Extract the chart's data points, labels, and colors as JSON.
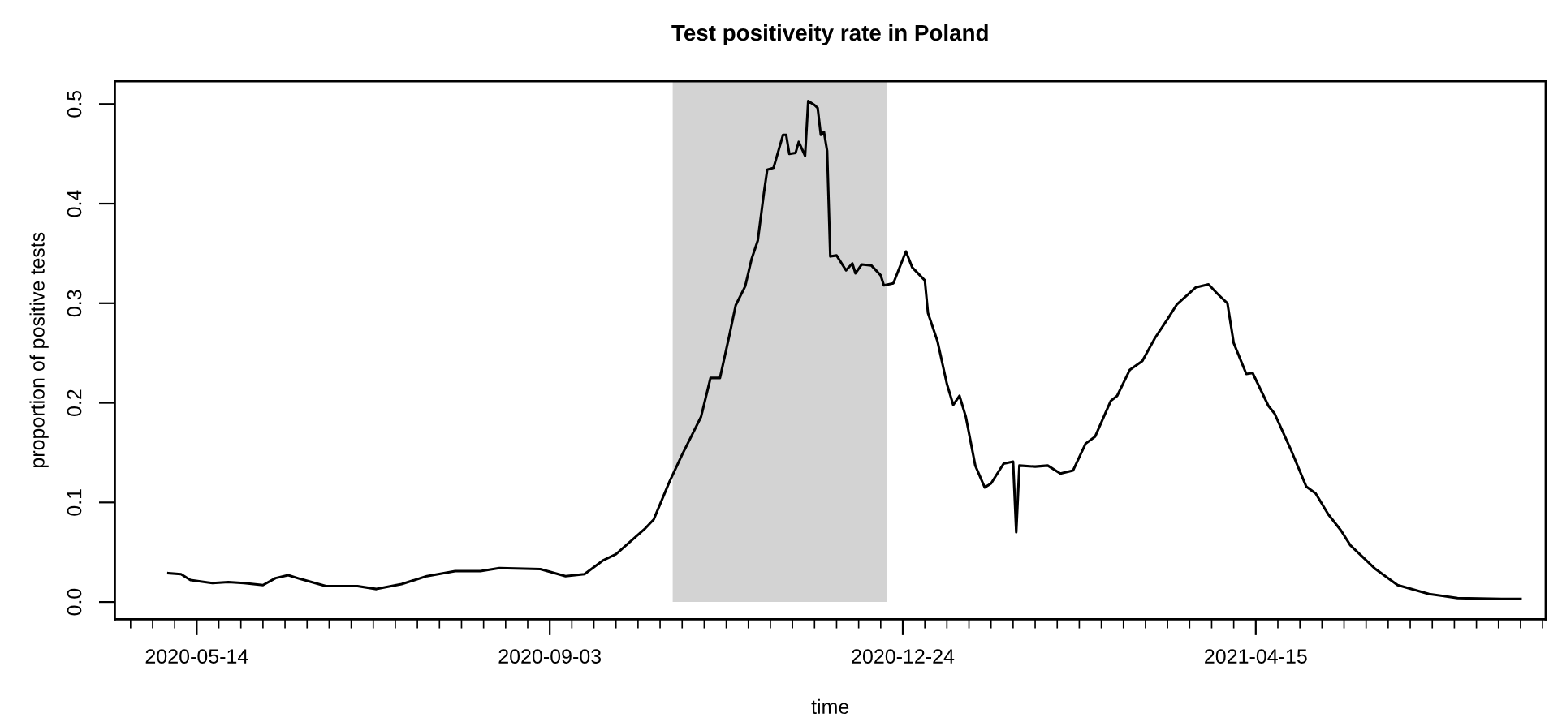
{
  "chart_data": {
    "type": "line",
    "title": "Test positiveity rate in Poland",
    "xlabel": "time",
    "ylabel": "proportion of positive tests",
    "x": [
      "2020-05-05",
      "2020-05-09",
      "2020-05-12",
      "2020-05-19",
      "2020-05-24",
      "2020-05-29",
      "2020-06-04",
      "2020-06-08",
      "2020-06-12",
      "2020-06-16",
      "2020-06-24",
      "2020-07-04",
      "2020-07-10",
      "2020-07-18",
      "2020-07-26",
      "2020-08-04",
      "2020-08-12",
      "2020-08-18",
      "2020-08-31",
      "2020-09-08",
      "2020-09-14",
      "2020-09-20",
      "2020-09-24",
      "2020-10-03",
      "2020-10-06",
      "2020-10-11",
      "2020-10-15",
      "2020-10-18",
      "2020-10-21",
      "2020-10-24",
      "2020-10-27",
      "2020-10-30",
      "2020-11-01",
      "2020-11-04",
      "2020-11-06",
      "2020-11-08",
      "2020-11-10",
      "2020-11-11",
      "2020-11-13",
      "2020-11-16",
      "2020-11-17",
      "2020-11-18",
      "2020-11-20",
      "2020-11-21",
      "2020-11-23",
      "2020-11-24",
      "2020-11-26",
      "2020-11-27",
      "2020-11-28",
      "2020-11-29",
      "2020-11-30",
      "2020-12-01",
      "2020-12-03",
      "2020-12-06",
      "2020-12-08",
      "2020-12-09",
      "2020-12-11",
      "2020-12-14",
      "2020-12-17",
      "2020-12-18",
      "2020-12-21",
      "2020-12-25",
      "2020-12-27",
      "2020-12-31",
      "2021-01-01",
      "2021-01-04",
      "2021-01-07",
      "2021-01-09",
      "2021-01-11",
      "2021-01-13",
      "2021-01-16",
      "2021-01-19",
      "2021-01-21",
      "2021-01-25",
      "2021-01-28",
      "2021-01-29",
      "2021-01-30",
      "2021-02-04",
      "2021-02-08",
      "2021-02-12",
      "2021-02-16",
      "2021-02-20",
      "2021-02-23",
      "2021-02-28",
      "2021-03-02",
      "2021-03-06",
      "2021-03-10",
      "2021-03-14",
      "2021-03-18",
      "2021-03-21",
      "2021-03-27",
      "2021-03-31",
      "2021-04-03",
      "2021-04-06",
      "2021-04-08",
      "2021-04-12",
      "2021-04-14",
      "2021-04-19",
      "2021-04-21",
      "2021-04-26",
      "2021-05-01",
      "2021-05-04",
      "2021-05-08",
      "2021-05-12",
      "2021-05-15",
      "2021-05-23",
      "2021-05-30",
      "2021-06-09",
      "2021-06-18",
      "2021-07-02",
      "2021-07-08"
    ],
    "series": [
      {
        "color": "#000000",
        "values": [
          0.029,
          0.028,
          0.022,
          0.019,
          0.02,
          0.019,
          0.017,
          0.024,
          0.027,
          0.023,
          0.016,
          0.016,
          0.013,
          0.018,
          0.026,
          0.031,
          0.031,
          0.034,
          0.033,
          0.026,
          0.028,
          0.042,
          0.048,
          0.073,
          0.083,
          0.121,
          0.148,
          0.167,
          0.186,
          0.225,
          0.225,
          0.268,
          0.298,
          0.317,
          0.344,
          0.363,
          0.412,
          0.434,
          0.436,
          0.469,
          0.469,
          0.45,
          0.451,
          0.462,
          0.448,
          0.503,
          0.499,
          0.496,
          0.469,
          0.472,
          0.453,
          0.347,
          0.348,
          0.333,
          0.34,
          0.33,
          0.339,
          0.338,
          0.328,
          0.318,
          0.32,
          0.352,
          0.336,
          0.323,
          0.29,
          0.262,
          0.219,
          0.198,
          0.207,
          0.186,
          0.137,
          0.115,
          0.119,
          0.139,
          0.141,
          0.07,
          0.137,
          0.136,
          0.137,
          0.129,
          0.132,
          0.159,
          0.166,
          0.202,
          0.207,
          0.233,
          0.242,
          0.265,
          0.284,
          0.299,
          0.316,
          0.319,
          0.309,
          0.3,
          0.26,
          0.229,
          0.23,
          0.197,
          0.189,
          0.154,
          0.116,
          0.109,
          0.088,
          0.072,
          0.057,
          0.033,
          0.017,
          0.008,
          0.004,
          0.003,
          0.003
        ]
      }
    ],
    "bands": [
      {
        "axis": "x",
        "from": "2020-10-12",
        "to": "2020-12-19",
        "color": "#d3d3d3"
      }
    ],
    "xlim": [
      "2020-04-18",
      "2021-07-16"
    ],
    "xticks": [
      {
        "value": "2020-04-23",
        "label": null
      },
      {
        "value": "2020-04-30",
        "label": null
      },
      {
        "value": "2020-05-07",
        "label": null
      },
      {
        "value": "2020-05-14",
        "label": "2020-05-14"
      },
      {
        "value": "2020-05-21",
        "label": null
      },
      {
        "value": "2020-05-28",
        "label": null
      },
      {
        "value": "2020-06-04",
        "label": null
      },
      {
        "value": "2020-06-11",
        "label": null
      },
      {
        "value": "2020-06-18",
        "label": null
      },
      {
        "value": "2020-06-25",
        "label": null
      },
      {
        "value": "2020-07-02",
        "label": null
      },
      {
        "value": "2020-07-09",
        "label": null
      },
      {
        "value": "2020-07-16",
        "label": null
      },
      {
        "value": "2020-07-23",
        "label": null
      },
      {
        "value": "2020-07-30",
        "label": null
      },
      {
        "value": "2020-08-06",
        "label": null
      },
      {
        "value": "2020-08-13",
        "label": null
      },
      {
        "value": "2020-08-20",
        "label": null
      },
      {
        "value": "2020-08-27",
        "label": null
      },
      {
        "value": "2020-09-03",
        "label": "2020-09-03"
      },
      {
        "value": "2020-09-10",
        "label": null
      },
      {
        "value": "2020-09-17",
        "label": null
      },
      {
        "value": "2020-09-24",
        "label": null
      },
      {
        "value": "2020-10-01",
        "label": null
      },
      {
        "value": "2020-10-08",
        "label": null
      },
      {
        "value": "2020-10-15",
        "label": null
      },
      {
        "value": "2020-10-22",
        "label": null
      },
      {
        "value": "2020-10-29",
        "label": null
      },
      {
        "value": "2020-11-05",
        "label": null
      },
      {
        "value": "2020-11-12",
        "label": null
      },
      {
        "value": "2020-11-19",
        "label": null
      },
      {
        "value": "2020-11-26",
        "label": null
      },
      {
        "value": "2020-12-03",
        "label": null
      },
      {
        "value": "2020-12-10",
        "label": null
      },
      {
        "value": "2020-12-17",
        "label": null
      },
      {
        "value": "2020-12-24",
        "label": "2020-12-24"
      },
      {
        "value": "2020-12-31",
        "label": null
      },
      {
        "value": "2021-01-07",
        "label": null
      },
      {
        "value": "2021-01-14",
        "label": null
      },
      {
        "value": "2021-01-21",
        "label": null
      },
      {
        "value": "2021-01-28",
        "label": null
      },
      {
        "value": "2021-02-04",
        "label": null
      },
      {
        "value": "2021-02-11",
        "label": null
      },
      {
        "value": "2021-02-18",
        "label": null
      },
      {
        "value": "2021-02-25",
        "label": null
      },
      {
        "value": "2021-03-04",
        "label": null
      },
      {
        "value": "2021-03-11",
        "label": null
      },
      {
        "value": "2021-03-18",
        "label": null
      },
      {
        "value": "2021-03-25",
        "label": null
      },
      {
        "value": "2021-04-01",
        "label": null
      },
      {
        "value": "2021-04-08",
        "label": null
      },
      {
        "value": "2021-04-15",
        "label": "2021-04-15"
      },
      {
        "value": "2021-04-22",
        "label": null
      },
      {
        "value": "2021-04-29",
        "label": null
      },
      {
        "value": "2021-05-06",
        "label": null
      },
      {
        "value": "2021-05-13",
        "label": null
      },
      {
        "value": "2021-05-20",
        "label": null
      },
      {
        "value": "2021-05-27",
        "label": null
      },
      {
        "value": "2021-06-03",
        "label": null
      },
      {
        "value": "2021-06-10",
        "label": null
      },
      {
        "value": "2021-06-17",
        "label": null
      },
      {
        "value": "2021-06-24",
        "label": null
      },
      {
        "value": "2021-07-01",
        "label": null
      },
      {
        "value": "2021-07-08",
        "label": null
      },
      {
        "value": "2021-07-15",
        "label": null
      }
    ],
    "ylim": [
      -0.0174,
      0.523
    ],
    "yticks": [
      {
        "value": 0,
        "label": "0.0"
      },
      {
        "value": 0.1,
        "label": "0.1"
      },
      {
        "value": 0.2,
        "label": "0.2"
      },
      {
        "value": 0.3,
        "label": "0.3"
      },
      {
        "value": 0.4,
        "label": "0.4"
      },
      {
        "value": 0.5,
        "label": "0.5"
      }
    ],
    "grid": false,
    "line_style": "solid"
  }
}
